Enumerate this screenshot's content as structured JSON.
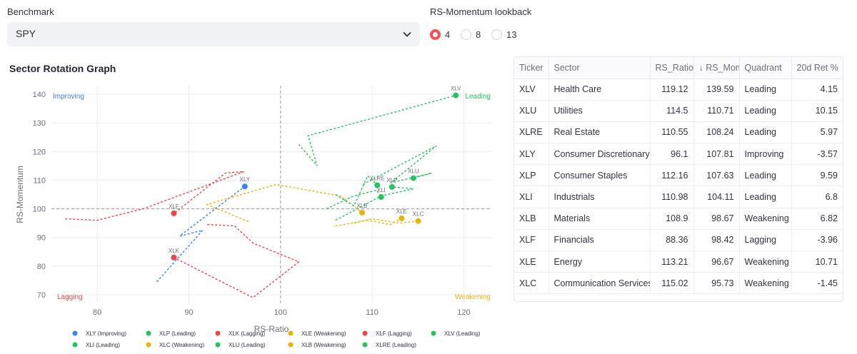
{
  "controls": {
    "benchmark_label": "Benchmark",
    "benchmark_value": "SPY",
    "lookback_label": "RS-Momentum lookback",
    "lookback_options": [
      "4",
      "8",
      "13"
    ],
    "lookback_selected": "4"
  },
  "chart_title": "Sector Rotation Graph",
  "chart_data": {
    "type": "scatter",
    "xlabel": "RS-Ratio",
    "ylabel": "RS-Momentum",
    "xlim": [
      75,
      123
    ],
    "ylim": [
      67,
      143
    ],
    "xticks": [
      80,
      90,
      100,
      110,
      120
    ],
    "yticks": [
      70,
      80,
      90,
      100,
      110,
      120,
      130,
      140
    ],
    "center": [
      100,
      100
    ],
    "quadrant_labels": {
      "top_left": "Improving",
      "top_right": "Leading",
      "bottom_left": "Lagging",
      "bottom_right": "Weakening"
    },
    "colors": {
      "Improving": "#3b82f6",
      "Leading": "#22c55e",
      "Lagging": "#ef4444",
      "Weakening": "#eab308"
    },
    "series": [
      {
        "name": "XLY",
        "quadrant": "Improving",
        "point": [
          96.1,
          107.81
        ],
        "trail": [
          [
            86.5,
            74.5
          ],
          [
            91.5,
            92.5
          ],
          [
            89,
            90.5
          ],
          [
            93.5,
            101.5
          ],
          [
            96.1,
            107.81
          ]
        ]
      },
      {
        "name": "XLP",
        "quadrant": "Leading",
        "point": [
          112.16,
          107.63
        ],
        "trail": [
          [
            106,
            96
          ],
          [
            111,
            104.5
          ],
          [
            114.5,
            107
          ],
          [
            112.16,
            107.63
          ]
        ]
      },
      {
        "name": "XLK",
        "quadrant": "Lagging",
        "point": [
          88.36,
          83
        ],
        "trail": [
          [
            92,
            94.5
          ],
          [
            95,
            94
          ],
          [
            97,
            88
          ],
          [
            102,
            81.5
          ],
          [
            97,
            69
          ],
          [
            88.36,
            83
          ]
        ]
      },
      {
        "name": "XLE",
        "quadrant": "Weakening",
        "point": [
          113.21,
          96.67
        ],
        "trail": [
          [
            106,
            94
          ],
          [
            109.5,
            96
          ],
          [
            112,
            94.5
          ],
          [
            113.21,
            96.67
          ]
        ]
      },
      {
        "name": "XLF",
        "quadrant": "Lagging",
        "point": [
          88.36,
          98.42
        ],
        "trail": [
          [
            76.5,
            96.5
          ],
          [
            80,
            96
          ],
          [
            85,
            100
          ],
          [
            96,
            113
          ],
          [
            94,
            112.5
          ],
          [
            88.36,
            98.42
          ]
        ]
      },
      {
        "name": "XLV",
        "quadrant": "Leading",
        "point": [
          119.12,
          139.59
        ],
        "trail": [
          [
            102,
            122.5
          ],
          [
            104,
            115
          ],
          [
            103,
            125.5
          ],
          [
            119.12,
            139.59
          ]
        ]
      },
      {
        "name": "XLI",
        "quadrant": "Leading",
        "point": [
          110.98,
          104.11
        ],
        "trail": [
          [
            105,
            100
          ],
          [
            108,
            104.5
          ],
          [
            110.5,
            106.5
          ],
          [
            110.98,
            104.11
          ]
        ]
      },
      {
        "name": "XLC",
        "quadrant": "Weakening",
        "point": [
          115.02,
          95.73
        ],
        "trail": [
          [
            108,
            95
          ],
          [
            110,
            96.5
          ],
          [
            113,
            95
          ],
          [
            115.02,
            95.73
          ]
        ]
      },
      {
        "name": "XLU",
        "quadrant": "Leading",
        "point": [
          114.5,
          110.71
        ],
        "trail": [
          [
            109,
            108.5
          ],
          [
            117,
            122
          ],
          [
            112,
            109
          ],
          [
            116.5,
            112.5
          ],
          [
            114.5,
            110.71
          ]
        ]
      },
      {
        "name": "XLB",
        "quadrant": "Weakening",
        "point": [
          108.9,
          98.67
        ],
        "trail": [
          [
            96.5,
            95.5
          ],
          [
            92,
            101.5
          ],
          [
            99.5,
            108.5
          ],
          [
            106.5,
            104.5
          ],
          [
            108.9,
            98.67
          ]
        ]
      },
      {
        "name": "XLRE",
        "quadrant": "Leading",
        "point": [
          110.55,
          108.24
        ],
        "trail": [
          [
            106,
            105
          ],
          [
            108,
            101
          ],
          [
            109.5,
            111.5
          ],
          [
            110.55,
            108.24
          ]
        ]
      }
    ],
    "legend": [
      "XLY (Improving)",
      "XLP (Leading)",
      "XLK (Lagging)",
      "XLE (Weakening)",
      "XLF (Lagging)",
      "XLV (Leading)",
      "XLI (Leading)",
      "XLC (Weakening)",
      "XLU (Leading)",
      "XLB (Weakening)",
      "XLRE (Leading)"
    ]
  },
  "table": {
    "headers": [
      "Ticker",
      "Sector",
      "RS_Ratio",
      "↓ RS_Mom",
      "Quadrant",
      "20d Ret %"
    ],
    "rows": [
      [
        "XLV",
        "Health Care",
        "119.12",
        "139.59",
        "Leading",
        "4.15"
      ],
      [
        "XLU",
        "Utilities",
        "114.5",
        "110.71",
        "Leading",
        "10.15"
      ],
      [
        "XLRE",
        "Real Estate",
        "110.55",
        "108.24",
        "Leading",
        "5.97"
      ],
      [
        "XLY",
        "Consumer Discretionary",
        "96.1",
        "107.81",
        "Improving",
        "-3.57"
      ],
      [
        "XLP",
        "Consumer Staples",
        "112.16",
        "107.63",
        "Leading",
        "9.59"
      ],
      [
        "XLI",
        "Industrials",
        "110.98",
        "104.11",
        "Leading",
        "6.8"
      ],
      [
        "XLB",
        "Materials",
        "108.9",
        "98.67",
        "Weakening",
        "6.82"
      ],
      [
        "XLF",
        "Financials",
        "88.36",
        "98.42",
        "Lagging",
        "-3.96"
      ],
      [
        "XLE",
        "Energy",
        "113.21",
        "96.67",
        "Weakening",
        "10.71"
      ],
      [
        "XLC",
        "Communication Services",
        "115.02",
        "95.73",
        "Weakening",
        "-1.45"
      ]
    ]
  }
}
